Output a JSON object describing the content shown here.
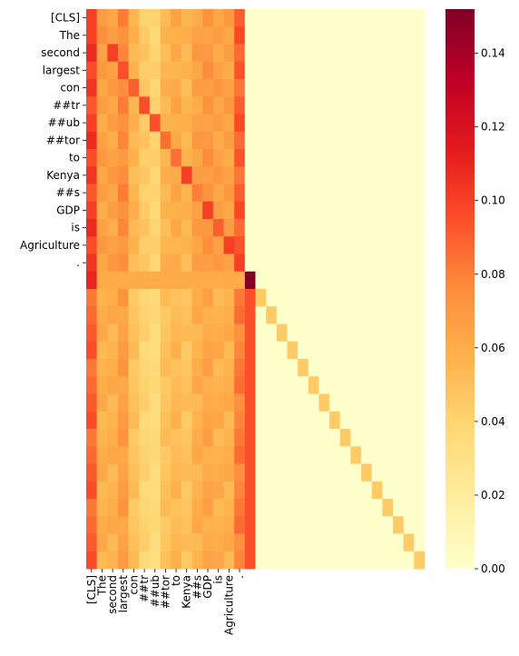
{
  "chart_data": {
    "type": "heatmap",
    "title": "",
    "xlabel": "",
    "ylabel": "",
    "tokens": [
      "[CLS]",
      "The",
      "second",
      "largest",
      "con",
      "##tr",
      "##ub",
      "##tor",
      "to",
      "Kenya",
      "##s",
      "GDP",
      "is",
      "Agriculture",
      "."
    ],
    "matrix_size": 32,
    "token_column_pattern": [
      0.1,
      0.065,
      0.065,
      0.075,
      0.055,
      0.045,
      0.04,
      0.055,
      0.06,
      0.055,
      0.065,
      0.07,
      0.065,
      0.065,
      0.09
    ],
    "token_diagonal_values": [
      0.1,
      0.075,
      0.1,
      0.095,
      0.09,
      0.095,
      0.095,
      0.085,
      0.085,
      0.1,
      0.08,
      0.1,
      0.09,
      0.1,
      0.1
    ],
    "sep_row_cls_value": 0.11,
    "sep_row_self_value": 0.15,
    "sep_row_column_value": 0.06,
    "pad_diagonal_value": 0.045,
    "background_value": 0.0,
    "colormap": [
      "#ffffcc",
      "#ffeda0",
      "#fed976",
      "#feb24c",
      "#fd8d3c",
      "#fc4e2a",
      "#e31a1c",
      "#bd0026",
      "#800026"
    ],
    "colorbar": {
      "min": 0.0,
      "max": 0.152,
      "ticks": [
        "0.00",
        "0.02",
        "0.04",
        "0.06",
        "0.08",
        "0.10",
        "0.12",
        "0.14"
      ]
    }
  }
}
